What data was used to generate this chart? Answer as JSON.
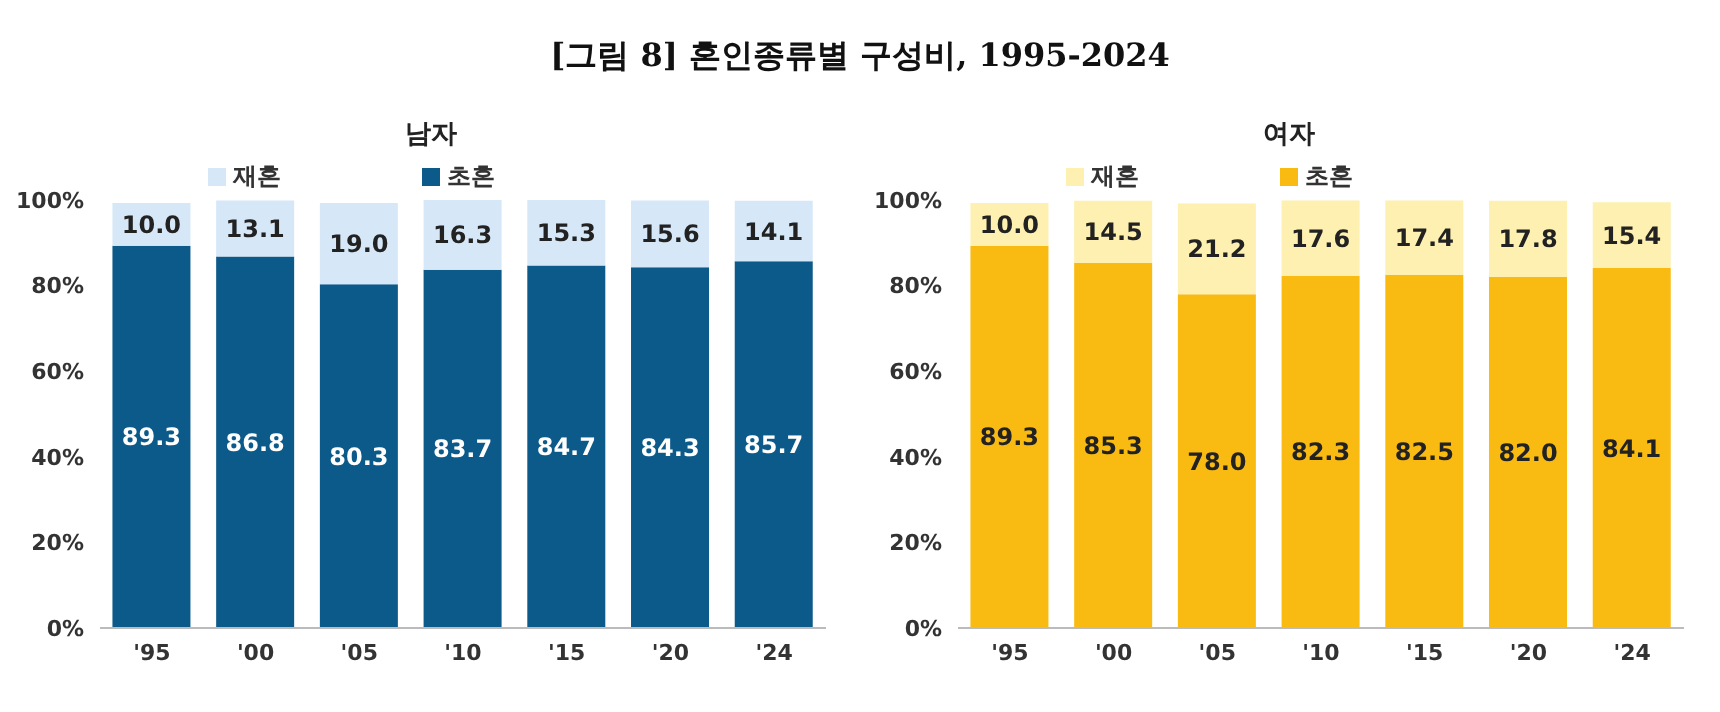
{
  "chart_data": [
    {
      "type": "bar",
      "title": "[그림 8] 혼인종류별 구성비, 1995-2024",
      "subtitle": "남자",
      "categories": [
        "'95",
        "'00",
        "'05",
        "'10",
        "'15",
        "'20",
        "'24"
      ],
      "stacked": true,
      "series": [
        {
          "name": "초혼",
          "color": "#0b5a8a",
          "values": [
            89.3,
            86.8,
            80.3,
            83.7,
            84.7,
            84.3,
            85.7
          ],
          "value_labels": [
            "89.3",
            "86.8",
            "80.3",
            "83.7",
            "84.7",
            "84.3",
            "85.7"
          ]
        },
        {
          "name": "재혼",
          "color": "#d6e8f8",
          "values": [
            10.0,
            13.1,
            19.0,
            16.3,
            15.3,
            15.6,
            14.1
          ],
          "value_labels": [
            "10.0",
            "13.1",
            "19.0",
            "16.3",
            "15.3",
            "15.6",
            "14.1"
          ]
        }
      ],
      "ylim": [
        0,
        100
      ],
      "yticks": [
        {
          "value": 0,
          "label": "0%"
        },
        {
          "value": 20,
          "label": "20%"
        },
        {
          "value": 40,
          "label": "40%"
        },
        {
          "value": 60,
          "label": "60%"
        },
        {
          "value": 80,
          "label": "80%"
        },
        {
          "value": 100,
          "label": "100%"
        }
      ],
      "legend": "top",
      "grid": false
    },
    {
      "type": "bar",
      "title": "여자",
      "categories": [
        "'95",
        "'00",
        "'05",
        "'10",
        "'15",
        "'20",
        "'24"
      ],
      "stacked": true,
      "series": [
        {
          "name": "초혼",
          "color": "#f9bb12",
          "values": [
            89.3,
            85.3,
            78.0,
            82.3,
            82.5,
            82.0,
            84.1
          ],
          "value_labels": [
            "89.3",
            "85.3",
            "78.0",
            "82.3",
            "82.5",
            "82.0",
            "84.1"
          ]
        },
        {
          "name": "재혼",
          "color": "#fdf0b0",
          "values": [
            10.0,
            14.5,
            21.2,
            17.6,
            17.4,
            17.8,
            15.4
          ],
          "value_labels": [
            "10.0",
            "14.5",
            "21.2",
            "17.6",
            "17.4",
            "17.8",
            "15.4"
          ]
        }
      ],
      "ylim": [
        0,
        100
      ],
      "yticks": [
        {
          "value": 0,
          "label": "0%"
        },
        {
          "value": 20,
          "label": "20%"
        },
        {
          "value": 40,
          "label": "40%"
        },
        {
          "value": 60,
          "label": "60%"
        },
        {
          "value": 80,
          "label": "80%"
        },
        {
          "value": 100,
          "label": "100%"
        }
      ],
      "legend": "top",
      "grid": false
    }
  ]
}
